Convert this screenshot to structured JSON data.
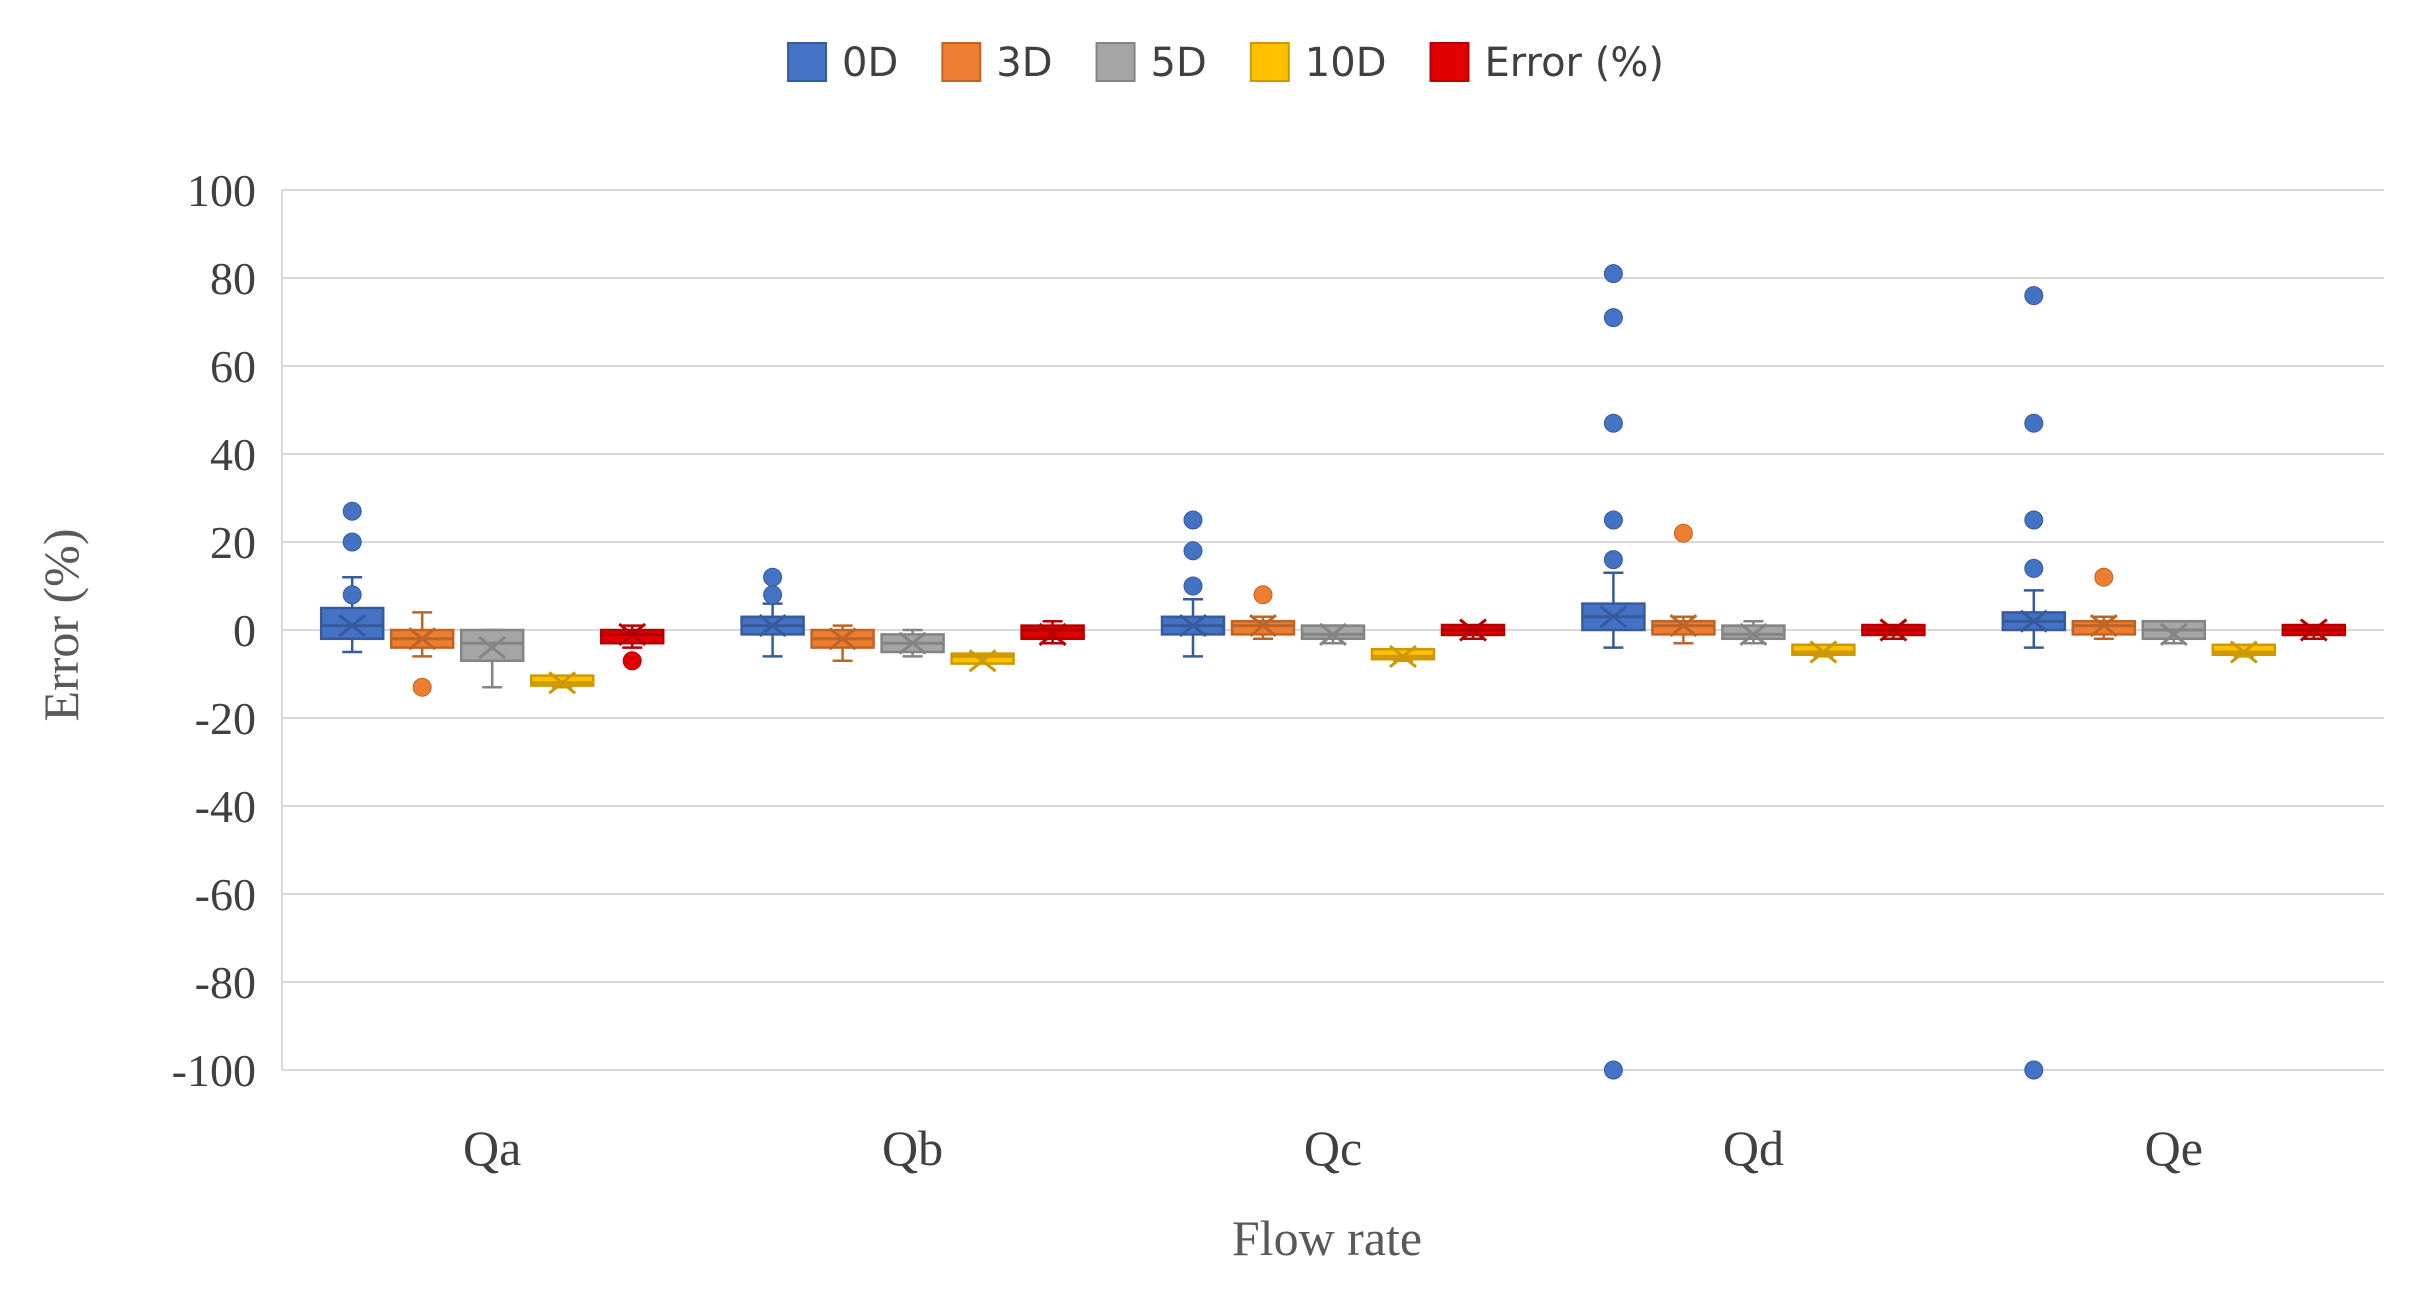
{
  "chart_data": {
    "type": "box",
    "xlabel": "Flow rate",
    "ylabel": "Error (%)",
    "ylim": [
      -100,
      100
    ],
    "yticks": [
      100,
      80,
      60,
      40,
      20,
      0,
      -20,
      -40,
      -60,
      -80,
      -100
    ],
    "grid": true,
    "legend_position": "top",
    "categories": [
      "Qa",
      "Qb",
      "Qc",
      "Qd",
      "Qe"
    ],
    "series": [
      {
        "name": "0D",
        "color": "#4472C4",
        "boxes": [
          {
            "category": "Qa",
            "min": -5,
            "q1": -2,
            "median": 1,
            "q3": 5,
            "max": 12,
            "mean": 1,
            "outliers": [
              27,
              20,
              8
            ]
          },
          {
            "category": "Qb",
            "min": -6,
            "q1": -1,
            "median": 1,
            "q3": 3,
            "max": 6,
            "mean": 1,
            "outliers": [
              12,
              8
            ]
          },
          {
            "category": "Qc",
            "min": -6,
            "q1": -1,
            "median": 1,
            "q3": 3,
            "max": 7,
            "mean": 1,
            "outliers": [
              25,
              18,
              10
            ]
          },
          {
            "category": "Qd",
            "min": -4,
            "q1": 0,
            "median": 3,
            "q3": 6,
            "max": 13,
            "mean": 3,
            "outliers": [
              81,
              71,
              47,
              25,
              16,
              -100
            ]
          },
          {
            "category": "Qe",
            "min": -4,
            "q1": 0,
            "median": 2,
            "q3": 4,
            "max": 9,
            "mean": 2,
            "outliers": [
              76,
              47,
              25,
              14,
              -100
            ]
          }
        ]
      },
      {
        "name": "3D",
        "color": "#ED7D31",
        "boxes": [
          {
            "category": "Qa",
            "min": -6,
            "q1": -4,
            "median": -2,
            "q3": 0,
            "max": 4,
            "mean": -2,
            "outliers": [
              -13
            ]
          },
          {
            "category": "Qb",
            "min": -7,
            "q1": -4,
            "median": -2,
            "q3": 0,
            "max": 1,
            "mean": -2,
            "outliers": []
          },
          {
            "category": "Qc",
            "min": -2,
            "q1": -1,
            "median": 1,
            "q3": 2,
            "max": 3,
            "mean": 1,
            "outliers": [
              8
            ]
          },
          {
            "category": "Qd",
            "min": -3,
            "q1": -1,
            "median": 1,
            "q3": 2,
            "max": 3,
            "mean": 1,
            "outliers": [
              22
            ]
          },
          {
            "category": "Qe",
            "min": -2,
            "q1": -1,
            "median": 1,
            "q3": 2,
            "max": 3,
            "mean": 1,
            "outliers": [
              12
            ]
          }
        ]
      },
      {
        "name": "5D",
        "color": "#A5A5A5",
        "boxes": [
          {
            "category": "Qa",
            "min": -13,
            "q1": -7,
            "median": -3,
            "q3": 0,
            "max": 0,
            "mean": -4,
            "outliers": []
          },
          {
            "category": "Qb",
            "min": -6,
            "q1": -5,
            "median": -3,
            "q3": -1,
            "max": 0,
            "mean": -3,
            "outliers": []
          },
          {
            "category": "Qc",
            "min": -3,
            "q1": -2,
            "median": -1,
            "q3": 1,
            "max": 1,
            "mean": -1,
            "outliers": []
          },
          {
            "category": "Qd",
            "min": -3,
            "q1": -2,
            "median": -1,
            "q3": 1,
            "max": 2,
            "mean": -1,
            "outliers": []
          },
          {
            "category": "Qe",
            "min": -3,
            "q1": -2,
            "median": 0,
            "q3": 2,
            "max": 2,
            "mean": -1,
            "outliers": []
          }
        ]
      },
      {
        "name": "10D",
        "color": "#FFC000",
        "boxes": [
          {
            "category": "Qa",
            "min": -13,
            "q1": -12,
            "median": -12,
            "q3": -11,
            "max": -11,
            "mean": -12,
            "outliers": []
          },
          {
            "category": "Qb",
            "min": -7,
            "q1": -7,
            "median": -6,
            "q3": -6,
            "max": -6,
            "mean": -7,
            "outliers": []
          },
          {
            "category": "Qc",
            "min": -7,
            "q1": -6,
            "median": -6,
            "q3": -5,
            "max": -5,
            "mean": -6,
            "outliers": []
          },
          {
            "category": "Qd",
            "min": -6,
            "q1": -5,
            "median": -5,
            "q3": -4,
            "max": -4,
            "mean": -5,
            "outliers": []
          },
          {
            "category": "Qe",
            "min": -6,
            "q1": -5,
            "median": -5,
            "q3": -4,
            "max": -4,
            "mean": -5,
            "outliers": []
          }
        ]
      },
      {
        "name": "Error (%)",
        "color": "#E00000",
        "boxes": [
          {
            "category": "Qa",
            "min": -4,
            "q1": -3,
            "median": -1,
            "q3": 0,
            "max": 1,
            "mean": -1,
            "outliers": [
              -7
            ]
          },
          {
            "category": "Qb",
            "min": -3,
            "q1": -2,
            "median": 0,
            "q3": 1,
            "max": 2,
            "mean": -1,
            "outliers": []
          },
          {
            "category": "Qc",
            "min": -2,
            "q1": -1,
            "median": 0,
            "q3": 1,
            "max": 1,
            "mean": 0,
            "outliers": []
          },
          {
            "category": "Qd",
            "min": -2,
            "q1": -1,
            "median": 0,
            "q3": 1,
            "max": 1,
            "mean": 0,
            "outliers": []
          },
          {
            "category": "Qe",
            "min": -2,
            "q1": -1,
            "median": 0,
            "q3": 1,
            "max": 1,
            "mean": 0,
            "outliers": []
          }
        ]
      }
    ]
  }
}
